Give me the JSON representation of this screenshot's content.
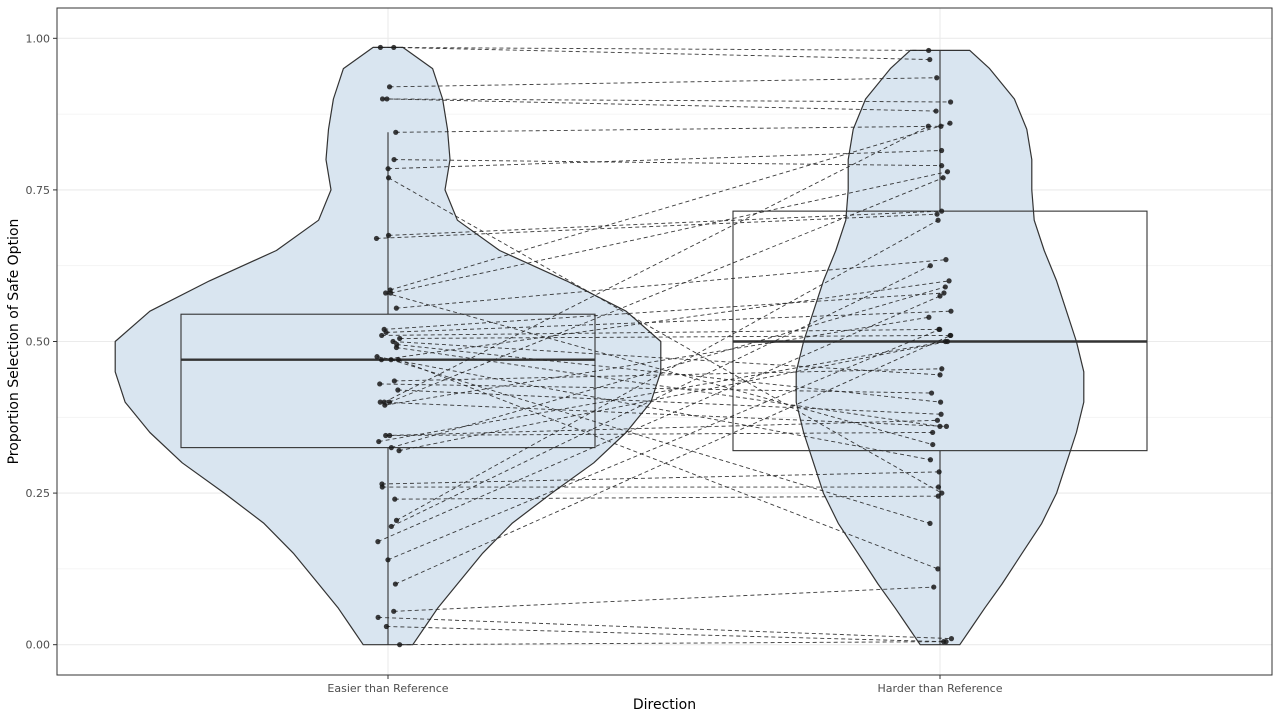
{
  "chart_data": {
    "type": "violin",
    "xlabel": "Direction",
    "ylabel": "Proportion Selection of Safe Option",
    "categories": [
      "Easier than Reference",
      "Harder than Reference"
    ],
    "ylim": [
      -0.05,
      1.05
    ],
    "y_ticks": [
      0.0,
      0.25,
      0.5,
      0.75,
      1.0
    ],
    "y_tick_labels": [
      "0.00",
      "0.25",
      "0.50",
      "0.75",
      "1.00"
    ],
    "grid": true,
    "fill_color": "#d9e5f0",
    "line_color": "#333333",
    "point_color": "#1a1a1a",
    "boxes": [
      {
        "category": "Easier than Reference",
        "q1": 0.325,
        "median": 0.47,
        "q3": 0.545,
        "whisker_low": 0.0,
        "whisker_high": 0.845
      },
      {
        "category": "Harder than Reference",
        "q1": 0.32,
        "median": 0.5,
        "q3": 0.715,
        "whisker_low": 0.0,
        "whisker_high": 0.98
      }
    ],
    "violins": [
      {
        "category": "Easier than Reference",
        "min": 0.0,
        "max": 0.985,
        "profile": [
          [
            0.0,
            0.1
          ],
          [
            0.03,
            0.15
          ],
          [
            0.06,
            0.2
          ],
          [
            0.1,
            0.28
          ],
          [
            0.15,
            0.38
          ],
          [
            0.2,
            0.5
          ],
          [
            0.25,
            0.66
          ],
          [
            0.3,
            0.83
          ],
          [
            0.35,
            0.96
          ],
          [
            0.4,
            1.06
          ],
          [
            0.45,
            1.1
          ],
          [
            0.5,
            1.1
          ],
          [
            0.55,
            0.96
          ],
          [
            0.6,
            0.72
          ],
          [
            0.65,
            0.45
          ],
          [
            0.7,
            0.28
          ],
          [
            0.75,
            0.23
          ],
          [
            0.8,
            0.25
          ],
          [
            0.85,
            0.24
          ],
          [
            0.9,
            0.22
          ],
          [
            0.95,
            0.18
          ],
          [
            0.985,
            0.06
          ]
        ]
      },
      {
        "category": "Harder than Reference",
        "min": 0.0,
        "max": 0.98,
        "profile": [
          [
            0.0,
            0.08
          ],
          [
            0.03,
            0.13
          ],
          [
            0.06,
            0.18
          ],
          [
            0.1,
            0.25
          ],
          [
            0.15,
            0.33
          ],
          [
            0.2,
            0.41
          ],
          [
            0.25,
            0.47
          ],
          [
            0.3,
            0.51
          ],
          [
            0.35,
            0.55
          ],
          [
            0.4,
            0.58
          ],
          [
            0.45,
            0.58
          ],
          [
            0.5,
            0.55
          ],
          [
            0.55,
            0.51
          ],
          [
            0.6,
            0.47
          ],
          [
            0.65,
            0.42
          ],
          [
            0.7,
            0.38
          ],
          [
            0.75,
            0.37
          ],
          [
            0.8,
            0.37
          ],
          [
            0.85,
            0.35
          ],
          [
            0.9,
            0.3
          ],
          [
            0.95,
            0.2
          ],
          [
            0.98,
            0.12
          ]
        ]
      }
    ],
    "pairs": [
      [
        0.985,
        0.98
      ],
      [
        0.985,
        0.965
      ],
      [
        0.92,
        0.935
      ],
      [
        0.9,
        0.88
      ],
      [
        0.9,
        0.895
      ],
      [
        0.845,
        0.855
      ],
      [
        0.8,
        0.79
      ],
      [
        0.785,
        0.815
      ],
      [
        0.77,
        0.25
      ],
      [
        0.675,
        0.715
      ],
      [
        0.67,
        0.71
      ],
      [
        0.585,
        0.86
      ],
      [
        0.58,
        0.78
      ],
      [
        0.58,
        0.33
      ],
      [
        0.555,
        0.635
      ],
      [
        0.52,
        0.58
      ],
      [
        0.515,
        0.55
      ],
      [
        0.51,
        0.52
      ],
      [
        0.505,
        0.51
      ],
      [
        0.5,
        0.445
      ],
      [
        0.495,
        0.4
      ],
      [
        0.49,
        0.36
      ],
      [
        0.475,
        0.305
      ],
      [
        0.47,
        0.2
      ],
      [
        0.47,
        0.125
      ],
      [
        0.47,
        0.6
      ],
      [
        0.435,
        0.455
      ],
      [
        0.43,
        0.415
      ],
      [
        0.42,
        0.38
      ],
      [
        0.4,
        0.36
      ],
      [
        0.4,
        0.855
      ],
      [
        0.4,
        0.77
      ],
      [
        0.395,
        0.54
      ],
      [
        0.345,
        0.37
      ],
      [
        0.345,
        0.35
      ],
      [
        0.335,
        0.5
      ],
      [
        0.325,
        0.59
      ],
      [
        0.32,
        0.5
      ],
      [
        0.265,
        0.285
      ],
      [
        0.26,
        0.26
      ],
      [
        0.24,
        0.245
      ],
      [
        0.205,
        0.7
      ],
      [
        0.195,
        0.625
      ],
      [
        0.17,
        0.575
      ],
      [
        0.14,
        0.52
      ],
      [
        0.1,
        0.51
      ],
      [
        0.055,
        0.095
      ],
      [
        0.045,
        0.01
      ],
      [
        0.03,
        0.005
      ],
      [
        0.0,
        0.005
      ]
    ]
  }
}
